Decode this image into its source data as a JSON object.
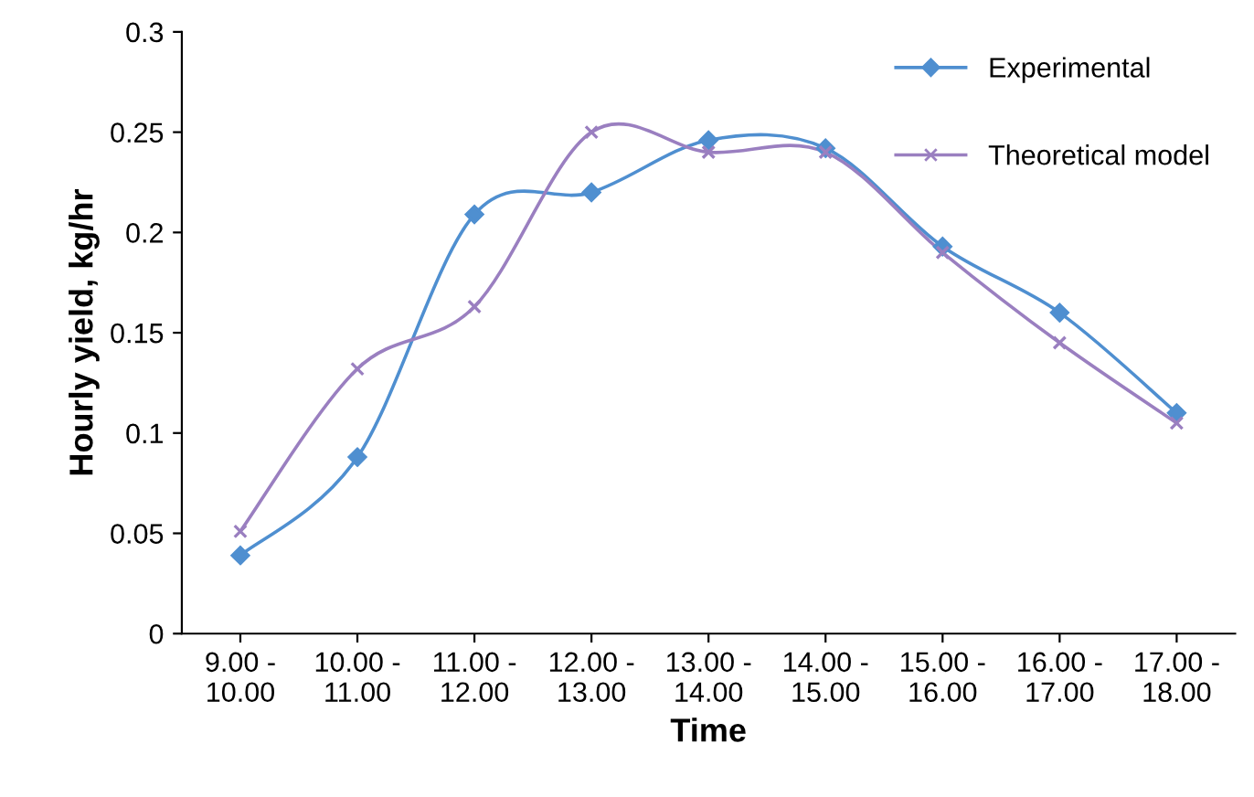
{
  "chart_data": {
    "type": "line",
    "xlabel": "Time",
    "ylabel": "Hourly yield, kg/hr",
    "categories": [
      "9.00 -\n10.00",
      "10.00 -\n11.00",
      "11.00 -\n12.00",
      "12.00 -\n13.00",
      "13.00 -\n14.00",
      "14.00 -\n15.00",
      "15.00 -\n16.00",
      "16.00 -\n17.00",
      "17.00 -\n18.00"
    ],
    "series": [
      {
        "name": "Experimental",
        "color": "#4f8fd0",
        "marker": "diamond",
        "values": [
          0.039,
          0.088,
          0.209,
          0.22,
          0.246,
          0.242,
          0.193,
          0.16,
          0.11
        ]
      },
      {
        "name": "Theoretical model",
        "color": "#9a7fc0",
        "marker": "cross",
        "values": [
          0.051,
          0.132,
          0.163,
          0.25,
          0.24,
          0.24,
          0.19,
          0.145,
          0.105
        ]
      }
    ],
    "ylim": [
      0,
      0.3
    ],
    "yticks": [
      {
        "value": 0,
        "label": "0"
      },
      {
        "value": 0.05,
        "label": "0.05"
      },
      {
        "value": 0.1,
        "label": "0.1"
      },
      {
        "value": 0.15,
        "label": "0.15"
      },
      {
        "value": 0.2,
        "label": "0.2"
      },
      {
        "value": 0.25,
        "label": "0.25"
      },
      {
        "value": 0.3,
        "label": "0.3"
      }
    ],
    "grid": false,
    "legend": "top right",
    "line_style": "solid"
  }
}
